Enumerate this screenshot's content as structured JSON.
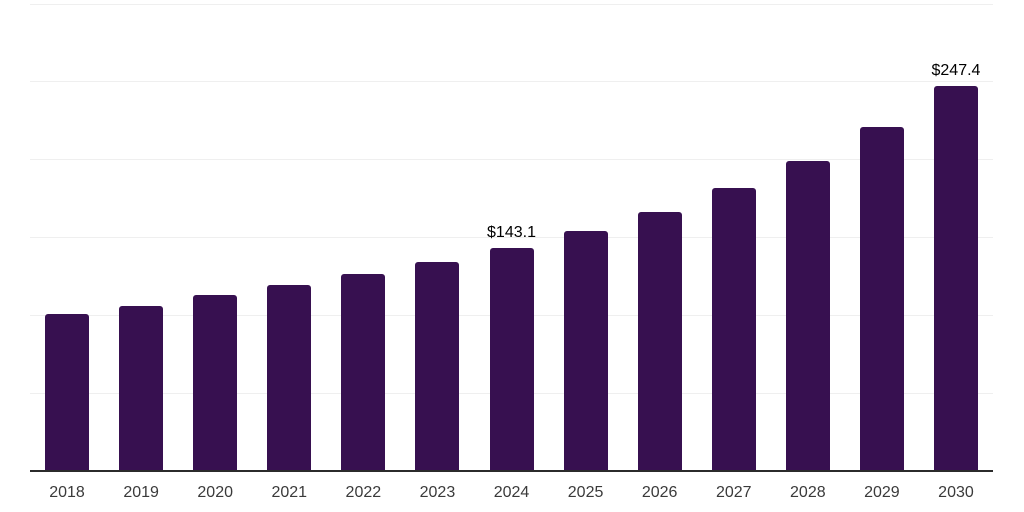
{
  "chart_data": {
    "type": "bar",
    "categories": [
      "2018",
      "2019",
      "2020",
      "2021",
      "2022",
      "2023",
      "2024",
      "2025",
      "2026",
      "2027",
      "2028",
      "2029",
      "2030"
    ],
    "values": [
      101.0,
      106.3,
      112.8,
      119.3,
      126.3,
      134.0,
      143.1,
      154.5,
      166.5,
      181.8,
      199.3,
      221.0,
      247.4
    ],
    "bars": [
      {
        "year": "2018",
        "value": 101.0,
        "label": ""
      },
      {
        "year": "2019",
        "value": 106.3,
        "label": ""
      },
      {
        "year": "2020",
        "value": 112.8,
        "label": ""
      },
      {
        "year": "2021",
        "value": 119.3,
        "label": ""
      },
      {
        "year": "2022",
        "value": 126.3,
        "label": ""
      },
      {
        "year": "2023",
        "value": 134.0,
        "label": ""
      },
      {
        "year": "2024",
        "value": 143.1,
        "label": "$143.1"
      },
      {
        "year": "2025",
        "value": 154.5,
        "label": ""
      },
      {
        "year": "2026",
        "value": 166.5,
        "label": ""
      },
      {
        "year": "2027",
        "value": 181.8,
        "label": ""
      },
      {
        "year": "2028",
        "value": 199.3,
        "label": ""
      },
      {
        "year": "2029",
        "value": 221.0,
        "label": ""
      },
      {
        "year": "2030",
        "value": 247.4,
        "label": "$247.4"
      }
    ],
    "ylim": [
      0,
      300
    ],
    "grid_step": 50,
    "grid": "horizontal",
    "legend": "none",
    "colors": {
      "bar": "#371050",
      "axis_line": "#2b2b2b",
      "gridline": "#efefef",
      "tick_label": "#3a3a3a",
      "data_label": "#000000"
    }
  }
}
